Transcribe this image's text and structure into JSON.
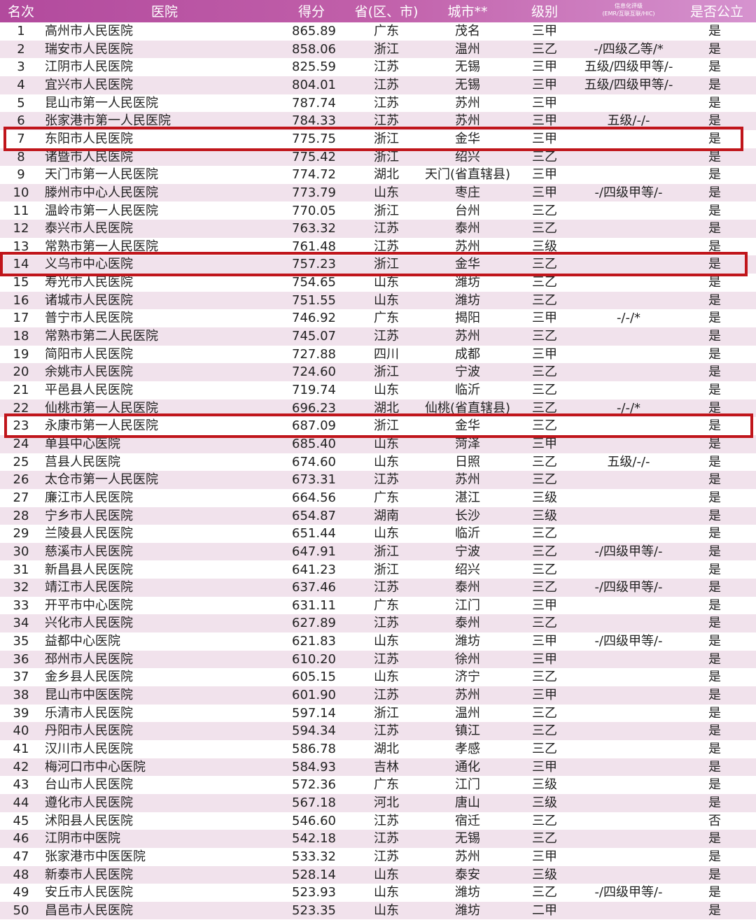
{
  "header": {
    "rank": "名次",
    "hospital": "医院",
    "score": "得分",
    "province": "省(区、市)",
    "city": "城市**",
    "level": "级别",
    "info_title": "信息化评级",
    "info_sub": "(EMR/互联互联/HIC)",
    "public": "是否公立"
  },
  "colors": {
    "header_start": "#b24a9d",
    "header_end": "#d693cf",
    "alt_row": "#f1e2ec",
    "highlight_border": "#c0151b"
  },
  "highlighted_ranks": [
    7,
    14,
    23
  ],
  "rows": [
    [
      "1",
      "高州市人民医院",
      "865.89",
      "广东",
      "茂名",
      "三甲",
      "",
      "是"
    ],
    [
      "2",
      "瑞安市人民医院",
      "858.06",
      "浙江",
      "温州",
      "三乙",
      "-/四级乙等/*",
      "是"
    ],
    [
      "3",
      "江阴市人民医院",
      "825.59",
      "江苏",
      "无锡",
      "三甲",
      "五级/四级甲等/-",
      "是"
    ],
    [
      "4",
      "宜兴市人民医院",
      "804.01",
      "江苏",
      "无锡",
      "三甲",
      "五级/四级甲等/-",
      "是"
    ],
    [
      "5",
      "昆山市第一人民医院",
      "787.74",
      "江苏",
      "苏州",
      "三甲",
      "",
      "是"
    ],
    [
      "6",
      "张家港市第一人民医院",
      "784.33",
      "江苏",
      "苏州",
      "三甲",
      "五级/-/-",
      "是"
    ],
    [
      "7",
      "东阳市人民医院",
      "775.75",
      "浙江",
      "金华",
      "三甲",
      "",
      "是"
    ],
    [
      "8",
      "诸暨市人民医院",
      "775.42",
      "浙江",
      "绍兴",
      "三乙",
      "",
      "是"
    ],
    [
      "9",
      "天门市第一人民医院",
      "774.72",
      "湖北",
      "天门(省直辖县)",
      "三甲",
      "",
      "是"
    ],
    [
      "10",
      "滕州市中心人民医院",
      "773.79",
      "山东",
      "枣庄",
      "三甲",
      "-/四级甲等/-",
      "是"
    ],
    [
      "11",
      "温岭市第一人民医院",
      "770.05",
      "浙江",
      "台州",
      "三乙",
      "",
      "是"
    ],
    [
      "12",
      "泰兴市人民医院",
      "763.32",
      "江苏",
      "泰州",
      "三乙",
      "",
      "是"
    ],
    [
      "13",
      "常熟市第一人民医院",
      "761.48",
      "江苏",
      "苏州",
      "三级",
      "",
      "是"
    ],
    [
      "14",
      "义乌市中心医院",
      "757.23",
      "浙江",
      "金华",
      "三乙",
      "",
      "是"
    ],
    [
      "15",
      "寿光市人民医院",
      "754.65",
      "山东",
      "潍坊",
      "三乙",
      "",
      "是"
    ],
    [
      "16",
      "诸城市人民医院",
      "751.55",
      "山东",
      "潍坊",
      "三乙",
      "",
      "是"
    ],
    [
      "17",
      "普宁市人民医院",
      "746.92",
      "广东",
      "揭阳",
      "三甲",
      "-/-/*",
      "是"
    ],
    [
      "18",
      "常熟市第二人民医院",
      "745.07",
      "江苏",
      "苏州",
      "三乙",
      "",
      "是"
    ],
    [
      "19",
      "简阳市人民医院",
      "727.88",
      "四川",
      "成都",
      "三甲",
      "",
      "是"
    ],
    [
      "20",
      "余姚市人民医院",
      "724.60",
      "浙江",
      "宁波",
      "三乙",
      "",
      "是"
    ],
    [
      "21",
      "平邑县人民医院",
      "719.74",
      "山东",
      "临沂",
      "三乙",
      "",
      "是"
    ],
    [
      "22",
      "仙桃市第一人民医院",
      "696.23",
      "湖北",
      "仙桃(省直辖县)",
      "三乙",
      "-/-/*",
      "是"
    ],
    [
      "23",
      "永康市第一人民医院",
      "687.09",
      "浙江",
      "金华",
      "三乙",
      "",
      "是"
    ],
    [
      "24",
      "单县中心医院",
      "685.40",
      "山东",
      "菏泽",
      "三甲",
      "",
      "是"
    ],
    [
      "25",
      "莒县人民医院",
      "674.60",
      "山东",
      "日照",
      "三乙",
      "五级/-/-",
      "是"
    ],
    [
      "26",
      "太仓市第一人民医院",
      "673.31",
      "江苏",
      "苏州",
      "三乙",
      "",
      "是"
    ],
    [
      "27",
      "廉江市人民医院",
      "664.56",
      "广东",
      "湛江",
      "三级",
      "",
      "是"
    ],
    [
      "28",
      "宁乡市人民医院",
      "654.87",
      "湖南",
      "长沙",
      "三级",
      "",
      "是"
    ],
    [
      "29",
      "兰陵县人民医院",
      "651.44",
      "山东",
      "临沂",
      "三乙",
      "",
      "是"
    ],
    [
      "30",
      "慈溪市人民医院",
      "647.91",
      "浙江",
      "宁波",
      "三乙",
      "-/四级甲等/-",
      "是"
    ],
    [
      "31",
      "新昌县人民医院",
      "641.23",
      "浙江",
      "绍兴",
      "三乙",
      "",
      "是"
    ],
    [
      "32",
      "靖江市人民医院",
      "637.46",
      "江苏",
      "泰州",
      "三乙",
      "-/四级甲等/-",
      "是"
    ],
    [
      "33",
      "开平市中心医院",
      "631.11",
      "广东",
      "江门",
      "三甲",
      "",
      "是"
    ],
    [
      "34",
      "兴化市人民医院",
      "627.89",
      "江苏",
      "泰州",
      "三乙",
      "",
      "是"
    ],
    [
      "35",
      "益都中心医院",
      "621.83",
      "山东",
      "潍坊",
      "三甲",
      "-/四级甲等/-",
      "是"
    ],
    [
      "36",
      "邳州市人民医院",
      "610.20",
      "江苏",
      "徐州",
      "三甲",
      "",
      "是"
    ],
    [
      "37",
      "金乡县人民医院",
      "605.15",
      "山东",
      "济宁",
      "三乙",
      "",
      "是"
    ],
    [
      "38",
      "昆山市中医医院",
      "601.90",
      "江苏",
      "苏州",
      "三甲",
      "",
      "是"
    ],
    [
      "39",
      "乐清市人民医院",
      "597.14",
      "浙江",
      "温州",
      "三乙",
      "",
      "是"
    ],
    [
      "40",
      "丹阳市人民医院",
      "594.34",
      "江苏",
      "镇江",
      "三乙",
      "",
      "是"
    ],
    [
      "41",
      "汉川市人民医院",
      "586.78",
      "湖北",
      "孝感",
      "三乙",
      "",
      "是"
    ],
    [
      "42",
      "梅河口市中心医院",
      "584.93",
      "吉林",
      "通化",
      "三甲",
      "",
      "是"
    ],
    [
      "43",
      "台山市人民医院",
      "572.36",
      "广东",
      "江门",
      "三级",
      "",
      "是"
    ],
    [
      "44",
      "遵化市人民医院",
      "567.18",
      "河北",
      "唐山",
      "三级",
      "",
      "是"
    ],
    [
      "45",
      "沭阳县人民医院",
      "546.60",
      "江苏",
      "宿迁",
      "三乙",
      "",
      "否"
    ],
    [
      "46",
      "江阴市中医院",
      "542.18",
      "江苏",
      "无锡",
      "三乙",
      "",
      "是"
    ],
    [
      "47",
      "张家港市中医医院",
      "533.32",
      "江苏",
      "苏州",
      "三甲",
      "",
      "是"
    ],
    [
      "48",
      "新泰市人民医院",
      "528.14",
      "山东",
      "泰安",
      "三级",
      "",
      "是"
    ],
    [
      "49",
      "安丘市人民医院",
      "523.93",
      "山东",
      "潍坊",
      "三乙",
      "-/四级甲等/-",
      "是"
    ],
    [
      "50",
      "昌邑市人民医院",
      "523.35",
      "山东",
      "潍坊",
      "二甲",
      "",
      "是"
    ]
  ]
}
